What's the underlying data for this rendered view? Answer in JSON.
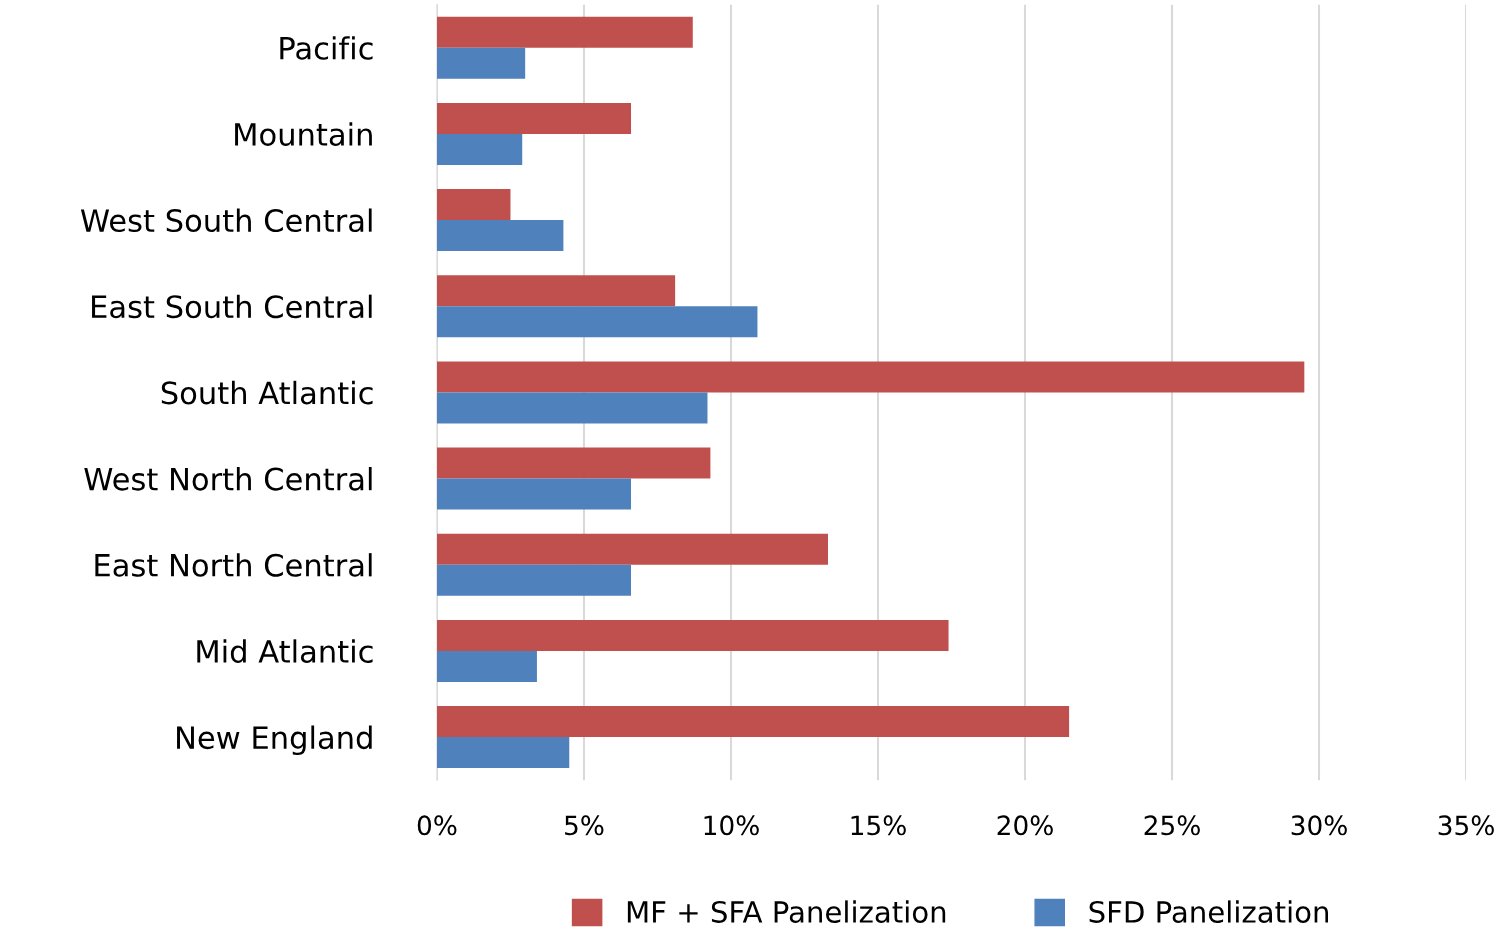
{
  "chart_data": {
    "type": "bar",
    "orientation": "horizontal",
    "categories": [
      "Pacific",
      "Mountain",
      "West South Central",
      "East South Central",
      "South Atlantic",
      "West North Central",
      "East North Central",
      "Mid Atlantic",
      "New England"
    ],
    "series": [
      {
        "name": "MF + SFA Panelization",
        "color": "#c0504d",
        "values": [
          8.7,
          6.6,
          2.5,
          8.1,
          29.5,
          9.3,
          13.3,
          17.4,
          21.5
        ]
      },
      {
        "name": "SFD Panelization",
        "color": "#4f81bd",
        "values": [
          3.0,
          2.9,
          4.3,
          10.9,
          9.2,
          6.6,
          6.6,
          3.4,
          4.5
        ]
      }
    ],
    "xlim": [
      0,
      35
    ],
    "xticks": [
      {
        "value": 0,
        "label": "0%"
      },
      {
        "value": 5,
        "label": "5%"
      },
      {
        "value": 10,
        "label": "10%"
      },
      {
        "value": 15,
        "label": "15%"
      },
      {
        "value": 20,
        "label": "20%"
      },
      {
        "value": 25,
        "label": "25%"
      },
      {
        "value": 30,
        "label": "30%"
      },
      {
        "value": 35,
        "label": "35%"
      }
    ],
    "grid": "x",
    "legend": "bottom"
  }
}
